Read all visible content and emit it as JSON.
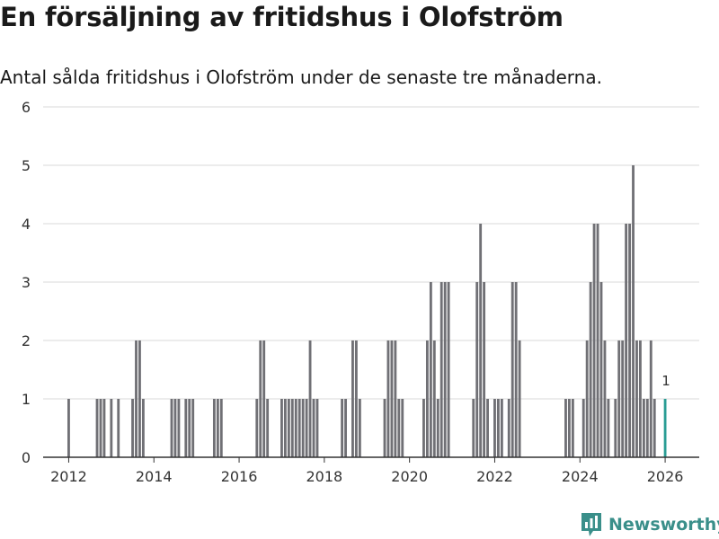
{
  "header": {
    "title": "En försäljning av fritidshus i Olofström",
    "subtitle": "Antal sålda fritidshus i Olofström under de senaste tre månaderna."
  },
  "brand": {
    "name": "Newsworthy"
  },
  "colors": {
    "bar": "#707075",
    "highlight": "#2a9d94",
    "grid": "#d9d9d9",
    "axis": "#333333"
  },
  "chart_data": {
    "type": "bar",
    "title": "En försäljning av fritidshus i Olofström",
    "subtitle": "Antal sålda fritidshus i Olofström under de senaste tre månaderna.",
    "xlabel": "",
    "ylabel": "",
    "ylim": [
      0,
      6
    ],
    "yticks": [
      "0",
      "1",
      "2",
      "3",
      "4",
      "5",
      "6"
    ],
    "xticks": [
      "2012",
      "2014",
      "2016",
      "2018",
      "2020",
      "2022",
      "2024",
      "2026"
    ],
    "xtick_years": [
      2012,
      2014,
      2016,
      2018,
      2020,
      2022,
      2024,
      2026
    ],
    "x_start_year": 2011.4,
    "x_end_year": 2026.8,
    "grid": true,
    "highlight_label": "1",
    "series": [
      {
        "name": "Antal sålda fritidshus",
        "start_year": 2011,
        "start_month": 1,
        "values": [
          0,
          0,
          0,
          0,
          0,
          0,
          0,
          0,
          0,
          0,
          0,
          0,
          1,
          0,
          0,
          0,
          0,
          0,
          0,
          0,
          1,
          1,
          1,
          0,
          1,
          0,
          1,
          0,
          0,
          0,
          1,
          2,
          2,
          1,
          0,
          0,
          0,
          0,
          0,
          0,
          0,
          1,
          1,
          1,
          0,
          1,
          1,
          1,
          0,
          0,
          0,
          0,
          0,
          1,
          1,
          1,
          0,
          0,
          0,
          0,
          0,
          0,
          0,
          0,
          0,
          1,
          2,
          2,
          1,
          0,
          0,
          0,
          1,
          1,
          1,
          1,
          1,
          1,
          1,
          1,
          2,
          1,
          1,
          0,
          0,
          0,
          0,
          0,
          0,
          1,
          1,
          0,
          2,
          2,
          1,
          0,
          0,
          0,
          0,
          0,
          0,
          1,
          2,
          2,
          2,
          1,
          1,
          0,
          0,
          0,
          0,
          0,
          1,
          2,
          3,
          2,
          1,
          3,
          3,
          3,
          0,
          0,
          0,
          0,
          0,
          0,
          1,
          3,
          4,
          3,
          1,
          0,
          1,
          1,
          1,
          0,
          1,
          3,
          3,
          2,
          0,
          0,
          0,
          0,
          0,
          0,
          0,
          0,
          0,
          0,
          0,
          0,
          1,
          1,
          1,
          0,
          0,
          1,
          2,
          3,
          4,
          4,
          3,
          2,
          1,
          0,
          1,
          2,
          2,
          4,
          4,
          5,
          2,
          2,
          1,
          1,
          2,
          1,
          0,
          0,
          1
        ]
      }
    ]
  }
}
